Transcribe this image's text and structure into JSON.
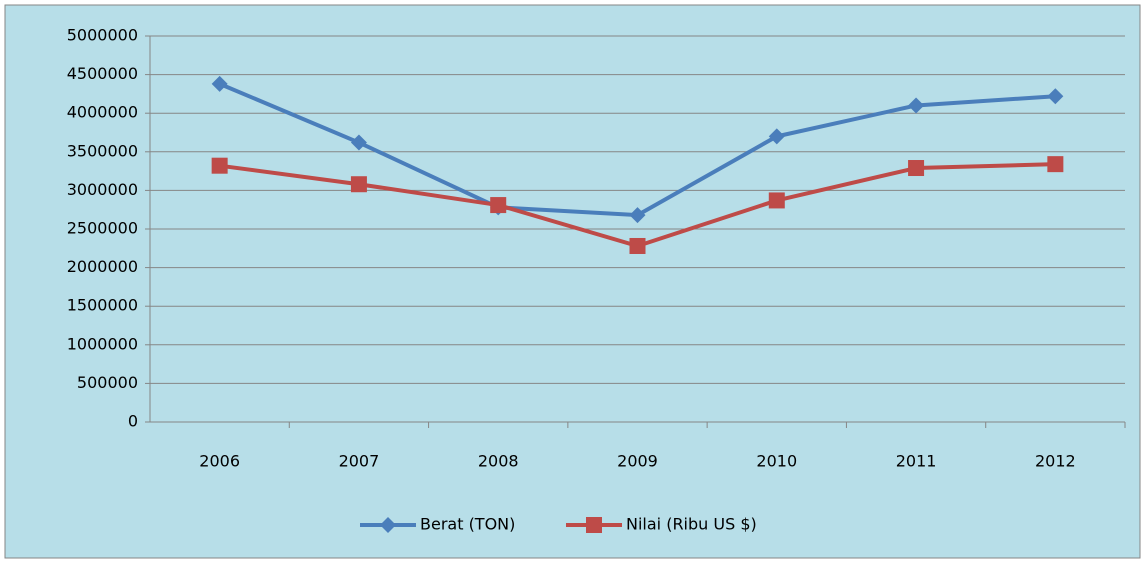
{
  "chart_data": {
    "type": "line",
    "categories": [
      "2006",
      "2007",
      "2008",
      "2009",
      "2010",
      "2011",
      "2012"
    ],
    "series": [
      {
        "name": "Berat (TON)",
        "color": "#4a7ebb",
        "marker": "diamond",
        "values": [
          4380000,
          3620000,
          2780000,
          2680000,
          3700000,
          4100000,
          4220000
        ]
      },
      {
        "name": "Nilai (Ribu US $)",
        "color": "#be4b48",
        "marker": "square",
        "values": [
          3320000,
          3080000,
          2810000,
          2280000,
          2870000,
          3290000,
          3340000
        ]
      }
    ],
    "ylim": [
      0,
      5000000
    ],
    "yticks": [
      0,
      500000,
      1000000,
      1500000,
      2000000,
      2500000,
      3000000,
      3500000,
      4000000,
      4500000,
      5000000
    ],
    "grid": true,
    "legend": "bottom"
  }
}
